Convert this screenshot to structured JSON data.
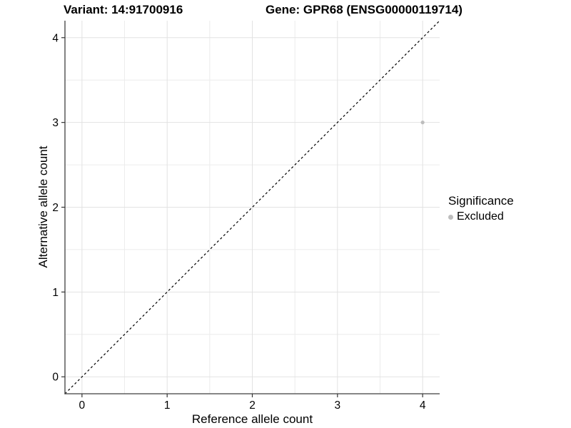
{
  "chart_data": {
    "type": "scatter",
    "titles": {
      "left": "Variant: 14:91700916",
      "right": "Gene: GPR68 (ENSG00000119714)"
    },
    "xlabel": "Reference allele count",
    "ylabel": "Alternative allele count",
    "xlim": [
      -0.2,
      4.2
    ],
    "ylim": [
      -0.2,
      4.2
    ],
    "xticks": [
      0,
      1,
      2,
      3,
      4
    ],
    "yticks": [
      0,
      1,
      2,
      3,
      4
    ],
    "xminor": [
      0.5,
      1.5,
      2.5,
      3.5
    ],
    "yminor": [
      0.5,
      1.5,
      2.5,
      3.5
    ],
    "grid": "major and minor gridlines on white background",
    "reference_line": {
      "kind": "identity y=x",
      "style": "dashed",
      "color": "#000000",
      "from": [
        -0.2,
        -0.2
      ],
      "to": [
        4.2,
        4.2
      ]
    },
    "series": [
      {
        "name": "Excluded",
        "color": "#bdbdbd",
        "point_radius": 2.6,
        "points": [
          {
            "x": 4,
            "y": 3
          }
        ]
      }
    ],
    "legend": {
      "title": "Significance",
      "position": "right",
      "items": [
        {
          "label": "Excluded",
          "color": "#bdbdbd"
        }
      ]
    }
  },
  "colors": {
    "background": "#ffffff",
    "grid_major": "#e2e2e2",
    "grid_minor": "#ececec",
    "axis_line": "#3f3f3f",
    "tick_mark": "#333333",
    "text": "#000000",
    "excluded_point": "#bdbdbd"
  }
}
